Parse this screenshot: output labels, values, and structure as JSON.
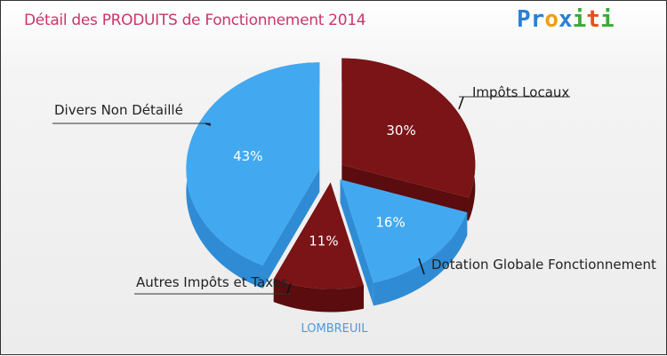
{
  "title": "Détail des PRODUITS de Fonctionnement 2014",
  "logo": "Proxiti",
  "chart_data": {
    "type": "pie",
    "title": "Détail des PRODUITS de Fonctionnement 2014",
    "subtitle": "LOMBREUIL",
    "slices": [
      {
        "label": "Impôts Locaux",
        "value": 30,
        "pct_label": "30%",
        "color": "#7b1416",
        "side": "#5a0c0e"
      },
      {
        "label": "Dotation Globale Fonctionnement",
        "value": 16,
        "pct_label": "16%",
        "color": "#42a9f0",
        "side": "#2f8cd4"
      },
      {
        "label": "Autres Impôts et Taxes",
        "value": 11,
        "pct_label": "11%",
        "color": "#7b1416",
        "side": "#5a0c0e"
      },
      {
        "label": "Divers Non Détaillé",
        "value": 43,
        "pct_label": "43%",
        "color": "#42a9f0",
        "side": "#2f8cd4"
      }
    ]
  }
}
